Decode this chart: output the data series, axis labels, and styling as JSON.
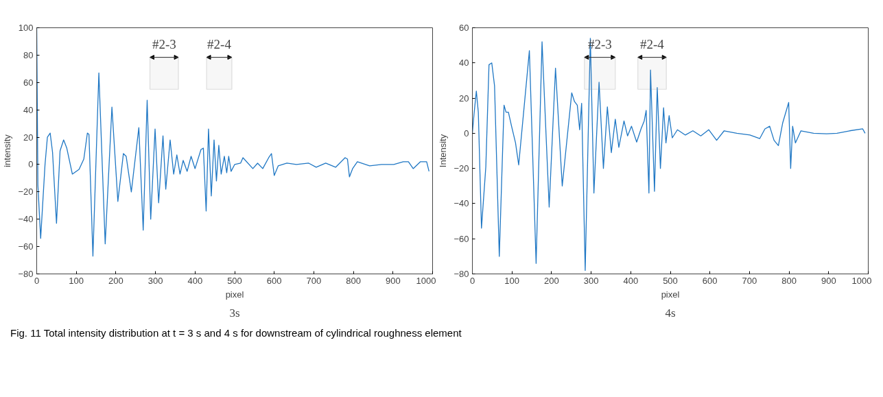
{
  "chart_data": [
    {
      "type": "line",
      "xlabel": "pixel",
      "ylabel": "intensity",
      "xlim": [
        0,
        1000
      ],
      "ylim": [
        -80,
        100
      ],
      "xticks": [
        0,
        100,
        200,
        300,
        400,
        500,
        600,
        700,
        800,
        900,
        1000
      ],
      "yticks": [
        -80,
        -60,
        -40,
        -20,
        0,
        20,
        40,
        60,
        80,
        100
      ],
      "grid": false,
      "series": [
        {
          "color": "#1f77c4",
          "x": [
            0,
            3,
            10,
            21,
            27,
            34,
            40,
            50,
            59,
            68,
            76,
            90,
            107,
            119,
            128,
            132,
            142,
            157,
            173,
            190,
            205,
            219,
            226,
            239,
            258,
            269,
            279,
            288,
            299,
            308,
            319,
            326,
            337,
            346,
            354,
            362,
            370,
            380,
            390,
            400,
            415,
            421,
            428,
            434,
            441,
            448,
            454,
            460,
            466,
            474,
            480,
            485,
            491,
            500,
            515,
            521,
            546,
            558,
            571,
            586,
            593,
            600,
            610,
            632,
            656,
            687,
            706,
            730,
            755,
            779,
            785,
            790,
            798,
            810,
            841,
            871,
            902,
            926,
            939,
            951,
            969,
            985,
            991
          ],
          "values": [
            100,
            -15,
            -54,
            0,
            20,
            23,
            9,
            -43,
            10,
            18,
            12,
            -7,
            -3.5,
            4,
            23,
            22,
            -67,
            67,
            -58,
            42,
            -27,
            8,
            6,
            -20,
            27,
            -48,
            47,
            -40,
            26,
            -28,
            21,
            -18,
            18,
            -7,
            7,
            -7,
            3,
            -5,
            6,
            -3,
            11,
            12,
            -34,
            26,
            -23,
            18,
            -12,
            14,
            -7,
            6,
            -6,
            6,
            -5,
            0,
            1,
            5,
            -3,
            1,
            -3,
            5,
            8,
            -8,
            -1,
            1,
            0,
            1,
            -2,
            1,
            -2,
            5,
            4,
            -9,
            -3,
            2,
            -1,
            0,
            0,
            2,
            2,
            -3,
            2,
            2,
            -5
          ]
        }
      ],
      "bands": [
        {
          "axis": "x",
          "from": 286,
          "to": 358,
          "label": "#2-3"
        },
        {
          "axis": "x",
          "from": 429,
          "to": 493,
          "label": "#2-4"
        }
      ],
      "annotations": [
        "3s",
        "Fig. 11 Total intensity distribution at t = 3 s and 4 s for downstream of cylindrical roughness element"
      ]
    },
    {
      "type": "line",
      "xlabel": "pixel",
      "ylabel": "Intensity",
      "xlim": [
        0,
        1000
      ],
      "ylim": [
        -80,
        60
      ],
      "xticks": [
        0,
        100,
        200,
        300,
        400,
        500,
        600,
        700,
        800,
        900,
        1000
      ],
      "yticks": [
        -80,
        -60,
        -40,
        -20,
        0,
        20,
        40,
        60
      ],
      "grid": false,
      "series": [
        {
          "color": "#1f77c4",
          "x": [
            0,
            4,
            10,
            15,
            23,
            34,
            42,
            49,
            56,
            68,
            80,
            85,
            91,
            99,
            109,
            117,
            144,
            161,
            176,
            194,
            210,
            227,
            251,
            258,
            265,
            271,
            276,
            285,
            298,
            307,
            320,
            331,
            341,
            351,
            361,
            370,
            383,
            392,
            402,
            415,
            426,
            434,
            439,
            446,
            450,
            460,
            467,
            475,
            483,
            489,
            497,
            505,
            518,
            538,
            557,
            577,
            597,
            617,
            636,
            668,
            701,
            726,
            739,
            751,
            762,
            773,
            784,
            799,
            804,
            809,
            816,
            830,
            862,
            895,
            921,
            953,
            986,
            992
          ],
          "values": [
            0,
            10.5,
            24,
            12,
            -54,
            -19,
            39,
            40,
            27,
            -70,
            16,
            12,
            12,
            4,
            -5.5,
            -18,
            47,
            -74,
            52,
            -42,
            37,
            -30,
            23,
            18,
            16,
            2,
            17,
            -78,
            54,
            -34,
            29,
            -20,
            15,
            -11,
            8,
            -8,
            7,
            -1.5,
            4,
            -5,
            2.5,
            7,
            13,
            -34,
            36,
            -33,
            26,
            -20,
            14.5,
            -5.5,
            10,
            -2.6,
            2,
            -1,
            1.4,
            -1.5,
            2,
            -4,
            1.4,
            0,
            -1,
            -3,
            2.5,
            4,
            -4,
            -7,
            6,
            17.5,
            -20,
            4,
            -5.5,
            1.4,
            0,
            -0.3,
            0,
            1.4,
            2.5,
            0
          ]
        }
      ],
      "bands": [
        {
          "axis": "x",
          "from": 283,
          "to": 361,
          "label": "#2-3"
        },
        {
          "axis": "x",
          "from": 418,
          "to": 490,
          "label": "#2-4"
        }
      ],
      "annotations": [
        "4s"
      ]
    }
  ]
}
